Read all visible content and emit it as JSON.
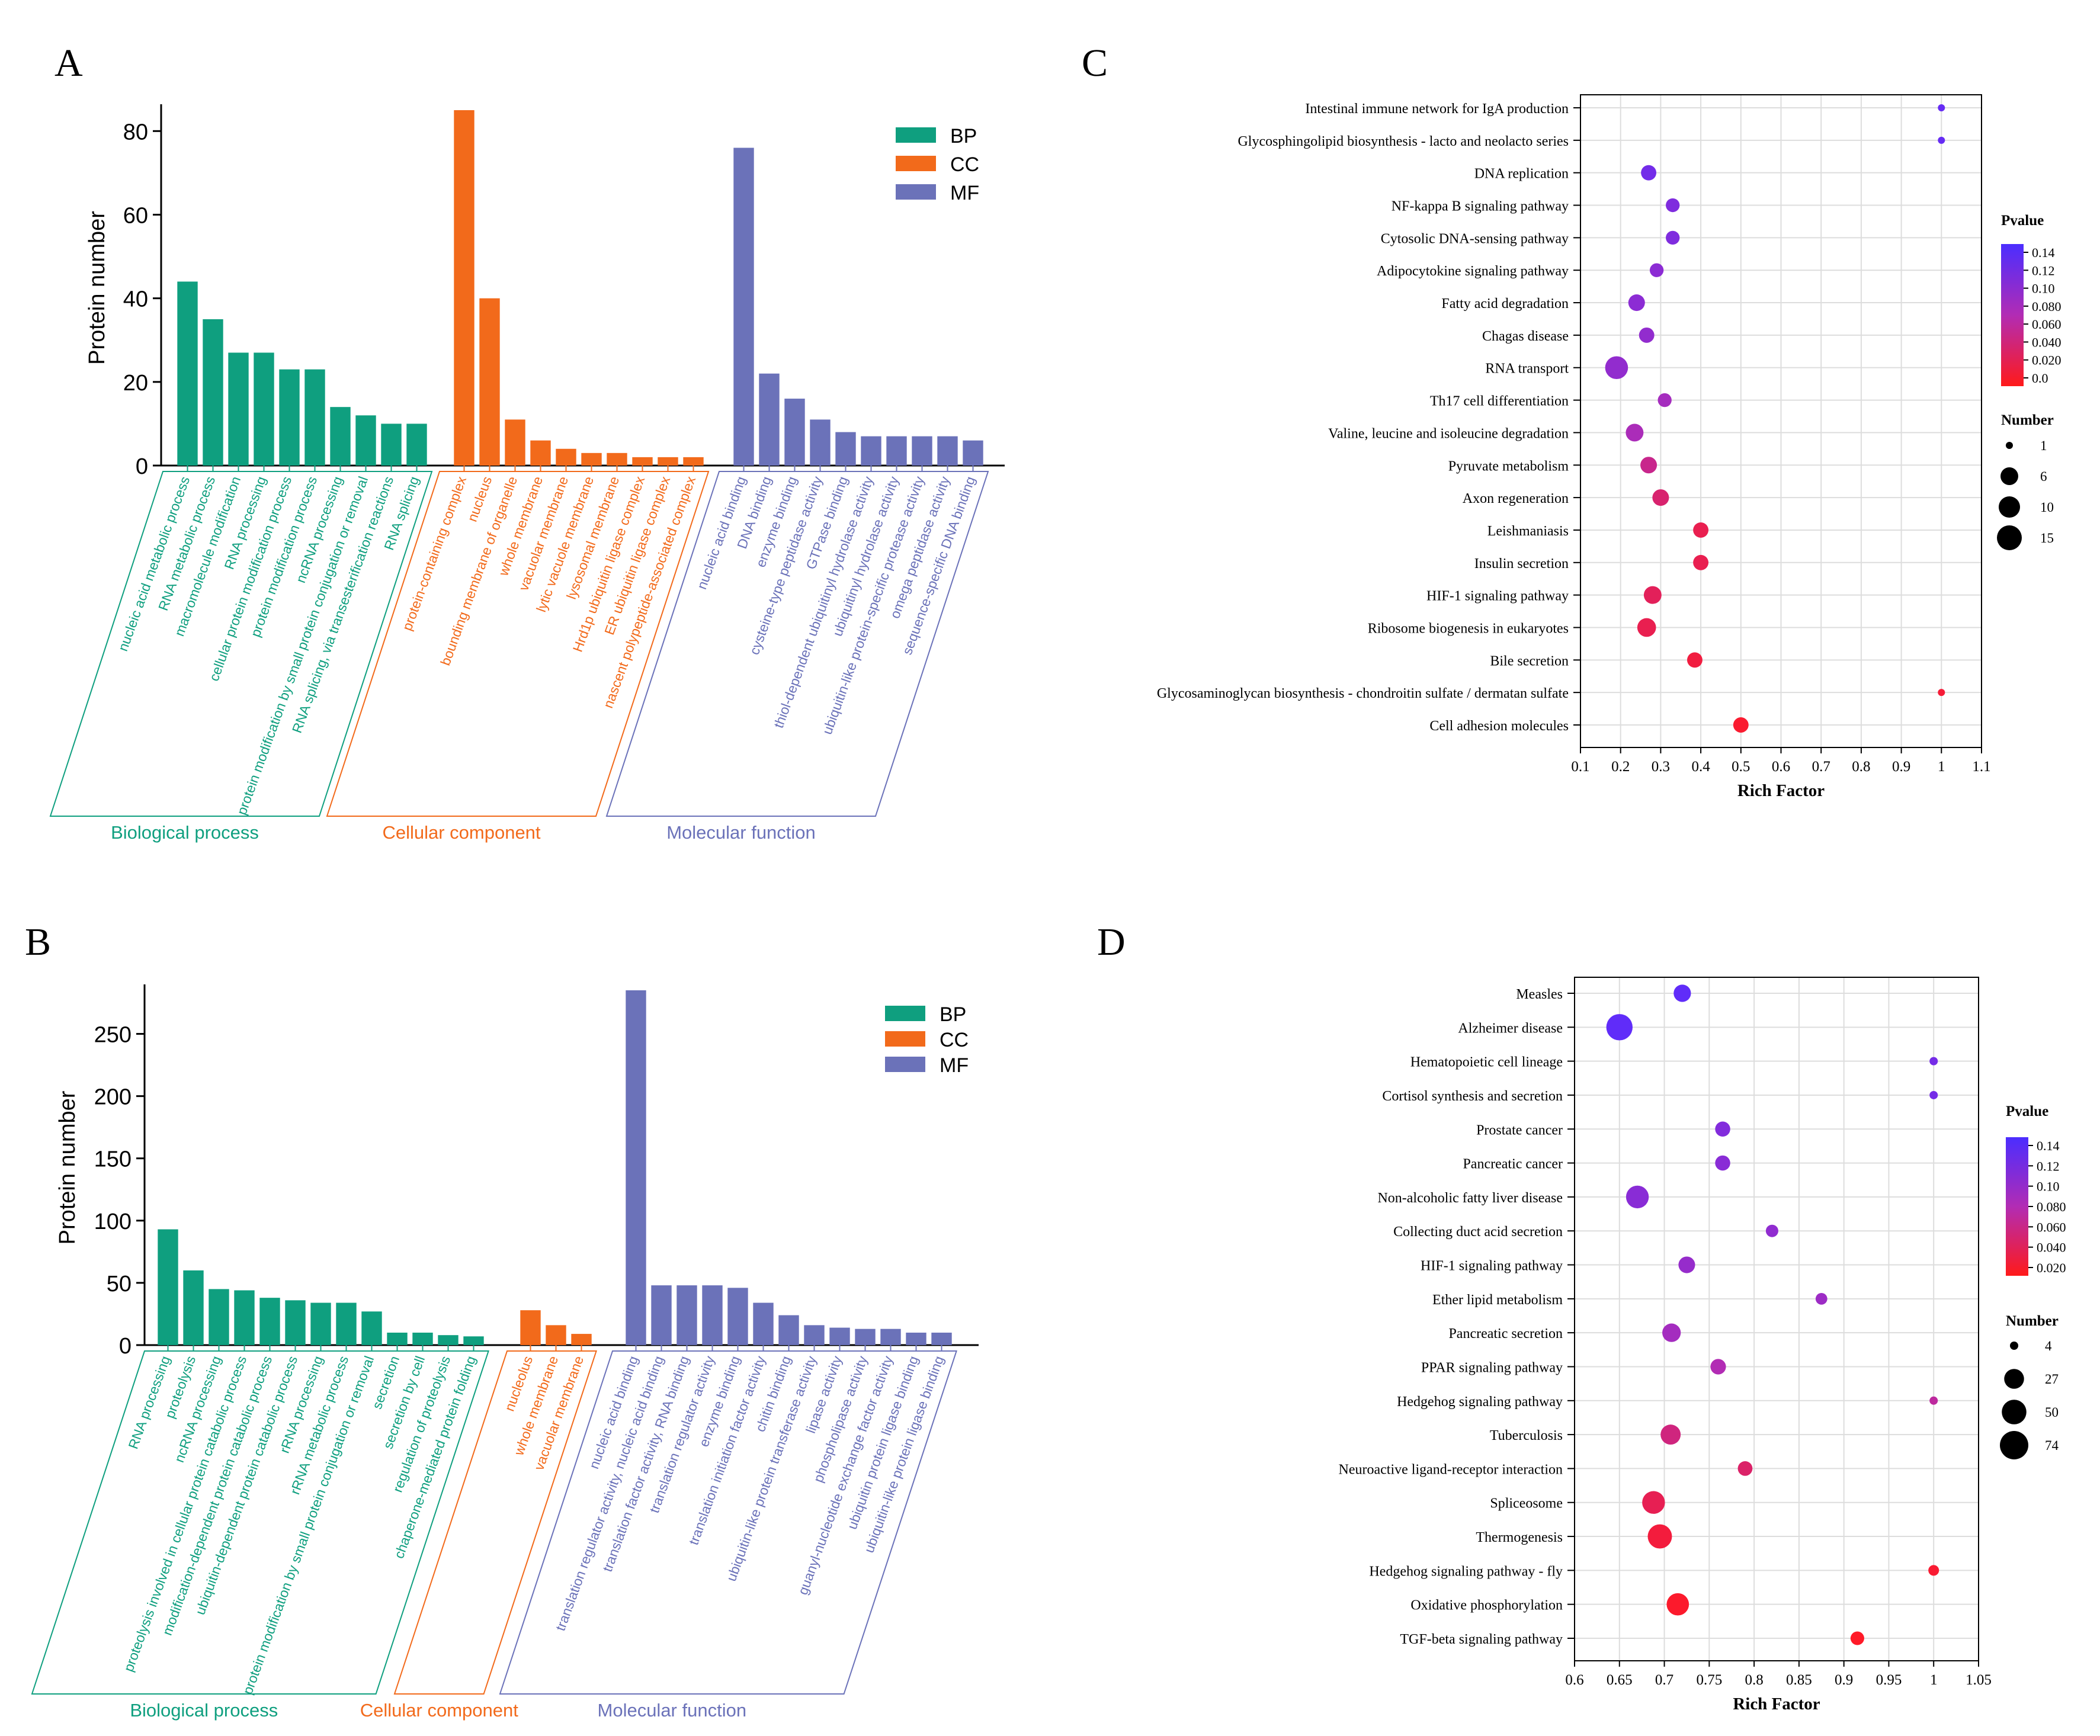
{
  "colors": {
    "BP": "#0f9f7f",
    "CC": "#f26a1b",
    "MF": "#6b72b9",
    "axis": "#000000",
    "grid": "#dddddd"
  },
  "panels": {
    "A": {
      "letter": "A"
    },
    "B": {
      "letter": "B"
    },
    "C": {
      "letter": "C"
    },
    "D": {
      "letter": "D"
    }
  },
  "chart_data": [
    {
      "id": "A",
      "type": "bar",
      "title": "",
      "ylabel": "Protein number",
      "ylim": [
        0,
        85
      ],
      "yticks": [
        0,
        20,
        40,
        60,
        80
      ],
      "legend": [
        "BP",
        "CC",
        "MF"
      ],
      "groups": [
        {
          "key": "BP",
          "label": "Biological process",
          "categories": [
            "nucleic acid metabolic process",
            "RNA metabolic process",
            "macromolecule modification",
            "RNA processing",
            "cellular protein modification process",
            "protein modification process",
            "ncRNA processing",
            "protein modification by small protein conjugation or removal",
            "RNA splicing, via transesterification reactions",
            "RNA splicing"
          ],
          "values": [
            44,
            35,
            27,
            27,
            23,
            23,
            14,
            12,
            10,
            10
          ]
        },
        {
          "key": "CC",
          "label": "Cellular component",
          "categories": [
            "protein-containing complex",
            "nucleus",
            "bounding membrane of organelle",
            "whole membrane",
            "vacuolar membrane",
            "lytic vacuole membrane",
            "lysosomal membrane",
            "Hrd1p ubiquitin ligase complex",
            "ER ubiquitin ligase complex",
            "nascent polypeptide-associated complex"
          ],
          "values": [
            85,
            40,
            11,
            6,
            4,
            3,
            3,
            2,
            2,
            2
          ]
        },
        {
          "key": "MF",
          "label": "Molecular function",
          "categories": [
            "nucleic acid binding",
            "DNA binding",
            "enzyme binding",
            "cysteine-type peptidase activity",
            "GTPase binding",
            "thiol-dependent ubiquitinyl hydrolase activity",
            "ubiquitinyl hydrolase activity",
            "ubiquitin-like protein-specific protease activity",
            "omega peptidase activity",
            "sequence-specific DNA binding"
          ],
          "values": [
            76,
            22,
            16,
            11,
            8,
            7,
            7,
            7,
            7,
            6
          ]
        }
      ]
    },
    {
      "id": "B",
      "type": "bar",
      "title": "",
      "ylabel": "Protein number",
      "ylim": [
        0,
        285
      ],
      "yticks": [
        0,
        50,
        100,
        150,
        200,
        250
      ],
      "legend": [
        "BP",
        "CC",
        "MF"
      ],
      "groups": [
        {
          "key": "BP",
          "label": "Biological process",
          "categories": [
            "RNA processing",
            "proteolysis",
            "ncRNA processing",
            "proteolysis involved in cellular protein catabolic process",
            "modification-dependent protein catabolic process",
            "ubiquitin-dependent protein catabolic process",
            "rRNA processing",
            "rRNA metabolic process",
            "protein modification by small protein conjugation or removal",
            "secretion",
            "secretion by cell",
            "regulation of proteolysis",
            "chaperone-mediated protein folding"
          ],
          "values": [
            93,
            60,
            45,
            44,
            38,
            36,
            34,
            34,
            27,
            10,
            10,
            8,
            7
          ]
        },
        {
          "key": "CC",
          "label": "Cellular component",
          "categories": [
            "nucleolus",
            "whole membrane",
            "vacuolar membrane"
          ],
          "values": [
            28,
            16,
            9
          ]
        },
        {
          "key": "MF",
          "label": "Molecular function",
          "categories": [
            "nucleic acid binding",
            "translation regulator activity, nucleic acid binding",
            "translation factor activity, RNA binding",
            "translation regulator activity",
            "enzyme binding",
            "translation initiation factor activity",
            "chitin binding",
            "ubiquitin-like protein transferase activity",
            "lipase activity",
            "phospholipase activity",
            "guanyl-nucleotide exchange factor activity",
            "ubiquitin protein ligase binding",
            "ubiquitin-like protein ligase binding"
          ],
          "values": [
            285,
            48,
            48,
            48,
            46,
            34,
            24,
            16,
            14,
            13,
            13,
            10,
            10
          ]
        }
      ]
    },
    {
      "id": "C",
      "type": "scatter",
      "title": "",
      "xlabel": "Rich Factor",
      "xlim": [
        0.1,
        1.1
      ],
      "xticks": [
        "0.1",
        "0.2",
        "0.3",
        "0.4",
        "0.5",
        "0.6",
        "0.7",
        "0.8",
        "0.9",
        "1",
        "1.1"
      ],
      "color_legend_title": "Pvalue",
      "pvalue_ticks": [
        "0.14",
        "0.12",
        "0.10",
        "0.080",
        "0.060",
        "0.040",
        "0.020",
        "0.0"
      ],
      "pvalue_range": [
        0,
        0.14
      ],
      "size_legend_title": "Number",
      "size_ticks": [
        1,
        6,
        10,
        15
      ],
      "size_range": [
        1,
        15
      ],
      "points": [
        {
          "term": "Intestinal immune network for IgA production",
          "x": 1.0,
          "number": 1,
          "pvalue": 0.13
        },
        {
          "term": "Glycosphingolipid biosynthesis - lacto and neolacto series",
          "x": 1.0,
          "number": 1,
          "pvalue": 0.13
        },
        {
          "term": "DNA replication",
          "x": 0.27,
          "number": 4,
          "pvalue": 0.12
        },
        {
          "term": "NF-kappa B signaling pathway",
          "x": 0.33,
          "number": 3,
          "pvalue": 0.11
        },
        {
          "term": "Cytosolic DNA-sensing pathway",
          "x": 0.33,
          "number": 3,
          "pvalue": 0.11
        },
        {
          "term": "Adipocytokine signaling pathway",
          "x": 0.29,
          "number": 3,
          "pvalue": 0.1
        },
        {
          "term": "Fatty acid degradation",
          "x": 0.24,
          "number": 5,
          "pvalue": 0.1
        },
        {
          "term": "Chagas disease",
          "x": 0.265,
          "number": 4,
          "pvalue": 0.095
        },
        {
          "term": "RNA transport",
          "x": 0.19,
          "number": 12,
          "pvalue": 0.095
        },
        {
          "term": "Th17 cell differentiation",
          "x": 0.31,
          "number": 3,
          "pvalue": 0.08
        },
        {
          "term": "Valine, leucine and isoleucine degradation",
          "x": 0.235,
          "number": 6,
          "pvalue": 0.075
        },
        {
          "term": "Pyruvate metabolism",
          "x": 0.27,
          "number": 5,
          "pvalue": 0.05
        },
        {
          "term": "Axon regeneration",
          "x": 0.3,
          "number": 5,
          "pvalue": 0.035
        },
        {
          "term": "Leishmaniasis",
          "x": 0.4,
          "number": 4,
          "pvalue": 0.02
        },
        {
          "term": "Insulin secretion",
          "x": 0.4,
          "number": 4,
          "pvalue": 0.02
        },
        {
          "term": "HIF-1 signaling pathway",
          "x": 0.28,
          "number": 6,
          "pvalue": 0.025
        },
        {
          "term": "Ribosome biogenesis in eukaryotes",
          "x": 0.265,
          "number": 7,
          "pvalue": 0.02
        },
        {
          "term": "Bile secretion",
          "x": 0.385,
          "number": 4,
          "pvalue": 0.012
        },
        {
          "term": "Glycosaminoglycan biosynthesis - chondroitin sulfate / dermatan sulfate",
          "x": 1.0,
          "number": 1,
          "pvalue": 0.008
        },
        {
          "term": "Cell adhesion molecules",
          "x": 0.5,
          "number": 4,
          "pvalue": 0.004
        }
      ]
    },
    {
      "id": "D",
      "type": "scatter",
      "title": "",
      "xlabel": "Rich Factor",
      "xlim": [
        0.6,
        1.05
      ],
      "xticks": [
        "0.6",
        "0.65",
        "0.7",
        "0.75",
        "0.8",
        "0.85",
        "0.9",
        "0.95",
        "1",
        "1.05"
      ],
      "color_legend_title": "Pvalue",
      "pvalue_ticks": [
        "0.14",
        "0.12",
        "0.10",
        "0.080",
        "0.060",
        "0.040",
        "0.020"
      ],
      "pvalue_range": [
        0.01,
        0.14
      ],
      "size_legend_title": "Number",
      "size_ticks": [
        4,
        27,
        50,
        74
      ],
      "size_range": [
        4,
        74
      ],
      "points": [
        {
          "term": "Measles",
          "x": 0.72,
          "number": 18,
          "pvalue": 0.135
        },
        {
          "term": "Alzheimer disease",
          "x": 0.65,
          "number": 60,
          "pvalue": 0.135
        },
        {
          "term": "Hematopoietic cell lineage",
          "x": 1.0,
          "number": 4,
          "pvalue": 0.12
        },
        {
          "term": "Cortisol synthesis and secretion",
          "x": 1.0,
          "number": 4,
          "pvalue": 0.12
        },
        {
          "term": "Prostate cancer",
          "x": 0.765,
          "number": 12,
          "pvalue": 0.11
        },
        {
          "term": "Pancreatic cancer",
          "x": 0.765,
          "number": 12,
          "pvalue": 0.105
        },
        {
          "term": "Non-alcoholic fatty liver disease",
          "x": 0.67,
          "number": 40,
          "pvalue": 0.105
        },
        {
          "term": "Collecting duct acid secretion",
          "x": 0.82,
          "number": 7,
          "pvalue": 0.1
        },
        {
          "term": "HIF-1 signaling pathway",
          "x": 0.725,
          "number": 16,
          "pvalue": 0.095
        },
        {
          "term": "Ether lipid metabolism",
          "x": 0.875,
          "number": 6,
          "pvalue": 0.09
        },
        {
          "term": "Pancreatic secretion",
          "x": 0.708,
          "number": 22,
          "pvalue": 0.085
        },
        {
          "term": "PPAR signaling pathway",
          "x": 0.76,
          "number": 13,
          "pvalue": 0.075
        },
        {
          "term": "Hedgehog signaling pathway",
          "x": 1.0,
          "number": 4,
          "pvalue": 0.065
        },
        {
          "term": "Tuberculosis",
          "x": 0.707,
          "number": 28,
          "pvalue": 0.05
        },
        {
          "term": "Neuroactive ligand-receptor interaction",
          "x": 0.79,
          "number": 11,
          "pvalue": 0.04
        },
        {
          "term": "Spliceosome",
          "x": 0.688,
          "number": 40,
          "pvalue": 0.03
        },
        {
          "term": "Thermogenesis",
          "x": 0.695,
          "number": 48,
          "pvalue": 0.02
        },
        {
          "term": "Hedgehog signaling pathway - fly",
          "x": 1.0,
          "number": 5,
          "pvalue": 0.015
        },
        {
          "term": "Oxidative phosphorylation",
          "x": 0.715,
          "number": 38,
          "pvalue": 0.012
        },
        {
          "term": "TGF-beta signaling pathway",
          "x": 0.915,
          "number": 9,
          "pvalue": 0.01
        }
      ]
    }
  ]
}
